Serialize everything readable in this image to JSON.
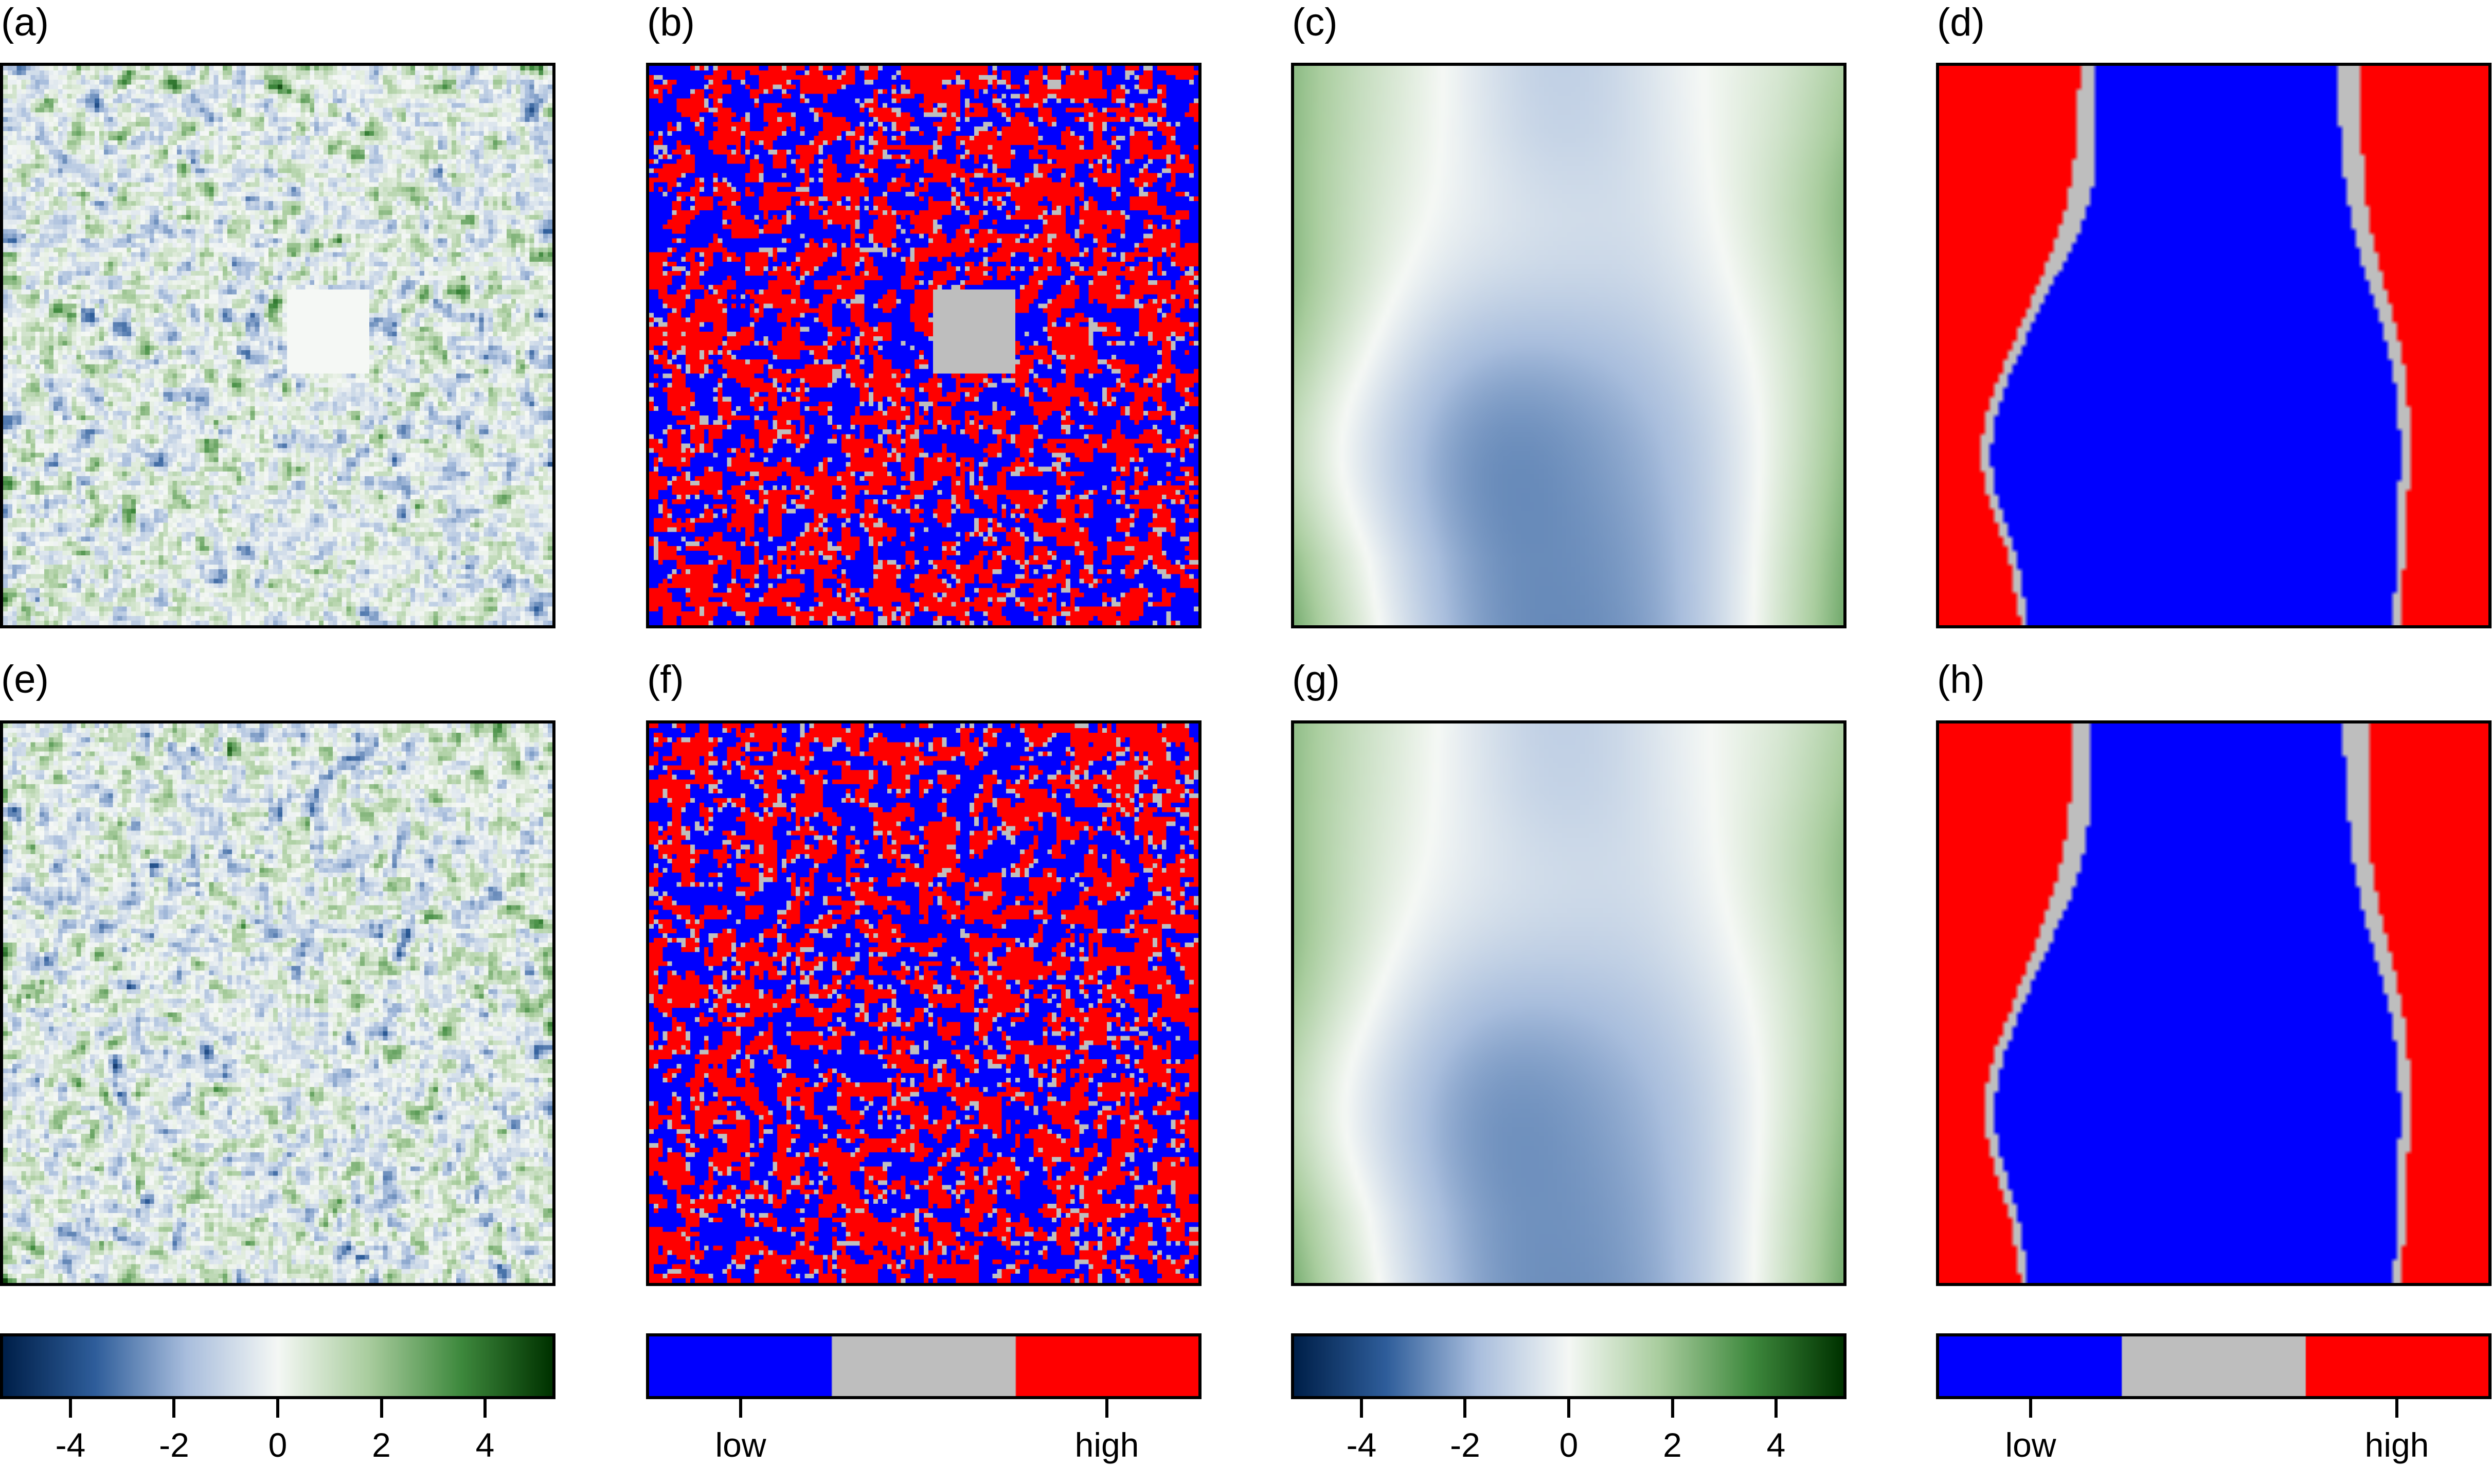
{
  "chart_data": [
    {
      "id": "a",
      "label": "(a)",
      "type": "heatmap",
      "row": 0,
      "col": 0,
      "palette": "diverging",
      "seed": 11,
      "smooth": 1,
      "scale": 1.1,
      "feature": "square-zero"
    },
    {
      "id": "b",
      "label": "(b)",
      "type": "heatmap",
      "row": 0,
      "col": 1,
      "palette": "categorical",
      "seed": 11,
      "smooth": 1,
      "scale": 1.1,
      "feature": "square-zero"
    },
    {
      "id": "c",
      "label": "(c)",
      "type": "heatmap",
      "row": 0,
      "col": 2,
      "palette": "diverging",
      "seed": 5,
      "smooth": 14,
      "scale": 1.0,
      "feature": "none"
    },
    {
      "id": "d",
      "label": "(d)",
      "type": "heatmap",
      "row": 0,
      "col": 3,
      "palette": "categorical",
      "seed": 5,
      "smooth": 14,
      "scale": 1.0,
      "feature": "none"
    },
    {
      "id": "e",
      "label": "(e)",
      "type": "heatmap",
      "row": 1,
      "col": 0,
      "palette": "diverging",
      "seed": 23,
      "smooth": 1,
      "scale": 1.1,
      "feature": "none"
    },
    {
      "id": "f",
      "label": "(f)",
      "type": "heatmap",
      "row": 1,
      "col": 1,
      "palette": "categorical",
      "seed": 23,
      "smooth": 1,
      "scale": 1.1,
      "feature": "none"
    },
    {
      "id": "g",
      "label": "(g)",
      "type": "heatmap",
      "row": 1,
      "col": 2,
      "palette": "diverging",
      "seed": 5,
      "smooth": 14,
      "scale": 0.9,
      "feature": "none"
    },
    {
      "id": "h",
      "label": "(h)",
      "type": "heatmap",
      "row": 1,
      "col": 3,
      "palette": "categorical",
      "seed": 5,
      "smooth": 14,
      "scale": 0.9,
      "feature": "none"
    }
  ],
  "legends": [
    {
      "id": "legend-continuous-1",
      "col": 0,
      "type": "continuous",
      "range": [
        -5.3,
        5.3
      ],
      "ticks": [
        -4,
        -2,
        0,
        2,
        4
      ],
      "tick_labels": [
        "-4",
        "-2",
        "0",
        "2",
        "4"
      ]
    },
    {
      "id": "legend-categorical-1",
      "col": 1,
      "type": "categorical",
      "categories": [
        "low",
        "",
        "high"
      ],
      "colors": [
        "#0000FF",
        "#BEBEBE",
        "#FF0000"
      ],
      "tick_labels": [
        "low",
        "high"
      ]
    },
    {
      "id": "legend-continuous-2",
      "col": 2,
      "type": "continuous",
      "range": [
        -5.3,
        5.3
      ],
      "ticks": [
        -4,
        -2,
        0,
        2,
        4
      ],
      "tick_labels": [
        "-4",
        "-2",
        "0",
        "2",
        "4"
      ]
    },
    {
      "id": "legend-categorical-2",
      "col": 3,
      "type": "categorical",
      "categories": [
        "low",
        "",
        "high"
      ],
      "colors": [
        "#0000FF",
        "#BEBEBE",
        "#FF0000"
      ],
      "tick_labels": [
        "low",
        "high"
      ]
    }
  ],
  "colors": {
    "diverging": [
      "#00204A",
      "#2F5E9B",
      "#A9BEDD",
      "#F5F8F5",
      "#A9CD9E",
      "#3F8A3E",
      "#003300"
    ],
    "low": "#0000FF",
    "mid": "#BEBEBE",
    "high": "#FF0000"
  }
}
